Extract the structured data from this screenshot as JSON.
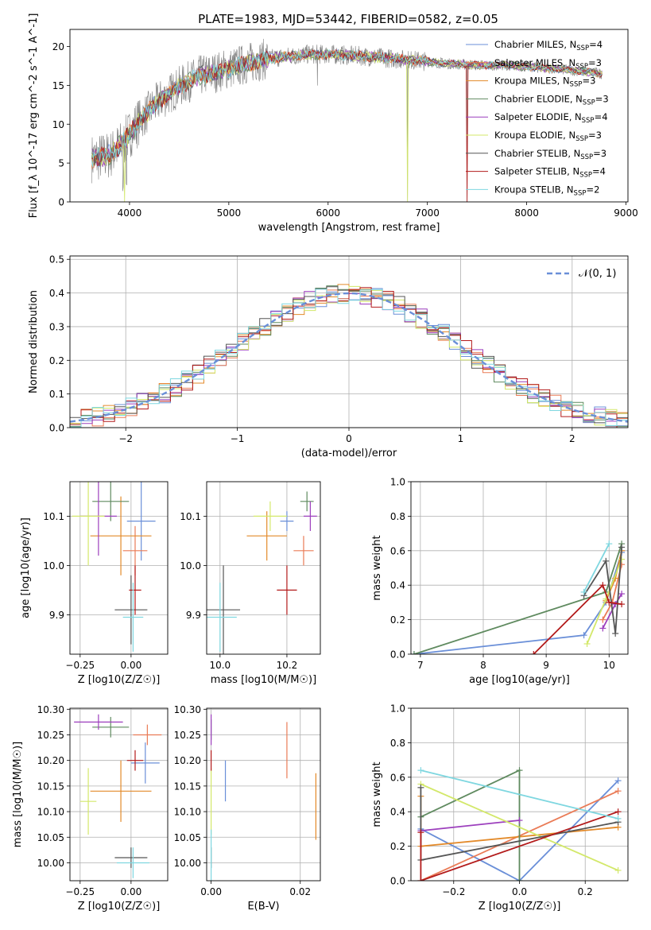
{
  "figure": {
    "title": "PLATE=1983, MJD=53442, FIBERID=0582, z=0.05"
  },
  "colors": {
    "Chabrier MILES": "#6a8fd8",
    "Salpeter MILES": "#ea7b56",
    "Kroupa MILES": "#e38a2a",
    "Chabrier ELODIE": "#5f8a5f",
    "Salpeter ELODIE": "#9c3fbd",
    "Kroupa ELODIE": "#d3e86a",
    "Chabrier STELIB": "#555555",
    "Salpeter STELIB": "#b31b1b",
    "Kroupa STELIB": "#7fd7e0",
    "data": "#808080",
    "normal": "#6a8fd8"
  },
  "chart_data": [
    {
      "id": "spectrum",
      "type": "line",
      "title": "PLATE=1983, MJD=53442, FIBERID=0582, z=0.05",
      "xlabel": "wavelength [Angstrom, rest frame]",
      "ylabel": "Flux [f_λ 10^-17 erg cm^-2 s^-1 A^-1]",
      "xlim": [
        3400,
        9020
      ],
      "ylim": [
        0,
        22.2
      ],
      "xticks": [
        "4000",
        "5000",
        "6000",
        "7000",
        "8000",
        "9000"
      ],
      "yticks": [
        "0",
        "5",
        "10",
        "15",
        "20"
      ],
      "legend": [
        "Chabrier MILES, N_SSP=4",
        "Salpeter MILES, N_SSP=3",
        "Kroupa MILES, N_SSP=3",
        "Chabrier ELODIE, N_SSP=3",
        "Salpeter ELODIE, N_SSP=4",
        "Kroupa ELODIE, N_SSP=3",
        "Chabrier STELIB, N_SSP=3",
        "Salpeter STELIB, N_SSP=4",
        "Kroupa STELIB, N_SSP=2"
      ],
      "continuum": [
        [
          3620,
          5.6
        ],
        [
          3800,
          6.0
        ],
        [
          3950,
          7.8
        ],
        [
          4100,
          10.5
        ],
        [
          4300,
          13.0
        ],
        [
          4500,
          14.8
        ],
        [
          4700,
          16.2
        ],
        [
          4900,
          16.8
        ],
        [
          5100,
          17.5
        ],
        [
          5300,
          18.2
        ],
        [
          5500,
          18.6
        ],
        [
          5800,
          19.0
        ],
        [
          6000,
          19.0
        ],
        [
          6300,
          18.8
        ],
        [
          6600,
          18.5
        ],
        [
          6900,
          18.2
        ],
        [
          7200,
          17.8
        ],
        [
          7500,
          17.6
        ],
        [
          7800,
          17.6
        ],
        [
          8200,
          17.2
        ],
        [
          8500,
          16.9
        ],
        [
          8760,
          16.5
        ]
      ],
      "dips": [
        [
          3934,
          1.5
        ],
        [
          3969,
          2.2
        ],
        [
          5892,
          14.8
        ],
        [
          6800,
          0
        ],
        [
          7400,
          0
        ]
      ]
    },
    {
      "id": "residuals",
      "type": "bar",
      "xlabel": "(data-model)/error",
      "ylabel": "Normed distribution",
      "xlim": [
        -2.5,
        2.5
      ],
      "ylim": [
        0,
        0.51
      ],
      "xticks": [
        "−2",
        "−1",
        "0",
        "1",
        "2"
      ],
      "yticks": [
        "0.0",
        "0.1",
        "0.2",
        "0.3",
        "0.4",
        "0.5"
      ],
      "bin_width": 0.1,
      "legend": "𝒩(0, 1)"
    },
    {
      "id": "age-vs-Z",
      "type": "scatter",
      "xlabel": "Z [log10(Z/Z☉)]",
      "ylabel": "age [log10(age/yr)]",
      "xlim": [
        -0.3,
        0.18
      ],
      "ylim": [
        9.82,
        10.17
      ],
      "xticks": [
        "−0.25",
        "0.00"
      ],
      "yticks": [
        "9.9",
        "10.0",
        "10.1"
      ],
      "points": [
        {
          "model": "Chabrier MILES",
          "x": 0.05,
          "y": 10.09,
          "ex": 0.07,
          "ey": 0.08
        },
        {
          "model": "Salpeter MILES",
          "x": 0.02,
          "y": 10.03,
          "ex": 0.06,
          "ey": 0.05
        },
        {
          "model": "Kroupa MILES",
          "x": -0.05,
          "y": 10.06,
          "ex": 0.15,
          "ey": 0.08
        },
        {
          "model": "Chabrier ELODIE",
          "x": -0.1,
          "y": 10.13,
          "ex": 0.09,
          "ey": 0.04
        },
        {
          "model": "Salpeter ELODIE",
          "x": -0.16,
          "y": 10.1,
          "ex": 0.09,
          "ey": 0.08
        },
        {
          "model": "Kroupa ELODIE",
          "x": -0.21,
          "y": 10.1,
          "ex": 0.08,
          "ey": 0.1
        },
        {
          "model": "Chabrier STELIB",
          "x": 0.0,
          "y": 9.91,
          "ex": 0.08,
          "ey": 0.07
        },
        {
          "model": "Salpeter STELIB",
          "x": 0.02,
          "y": 9.95,
          "ex": 0.03,
          "ey": 0.05
        },
        {
          "model": "Kroupa STELIB",
          "x": 0.01,
          "y": 9.895,
          "ex": 0.05,
          "ey": 0.07
        }
      ]
    },
    {
      "id": "age-vs-mass",
      "type": "scatter",
      "xlabel": "mass [log10(M/M☉)]",
      "xlim": [
        9.96,
        10.3
      ],
      "ylim": [
        9.82,
        10.17
      ],
      "xticks": [
        "10.0",
        "10.2"
      ],
      "yticks": [
        "9.9",
        "10.0",
        "10.1"
      ],
      "points": [
        {
          "model": "Chabrier MILES",
          "x": 10.2,
          "y": 10.09,
          "ex": 0.02,
          "ey": 0.02
        },
        {
          "model": "Salpeter MILES",
          "x": 10.25,
          "y": 10.03,
          "ex": 0.03,
          "ey": 0.03
        },
        {
          "model": "Kroupa MILES",
          "x": 10.14,
          "y": 10.06,
          "ex": 0.06,
          "ey": 0.05
        },
        {
          "model": "Chabrier ELODIE",
          "x": 10.26,
          "y": 10.13,
          "ex": 0.02,
          "ey": 0.02
        },
        {
          "model": "Salpeter ELODIE",
          "x": 10.27,
          "y": 10.1,
          "ex": 0.02,
          "ey": 0.03
        },
        {
          "model": "Kroupa ELODIE",
          "x": 10.15,
          "y": 10.1,
          "ex": 0.05,
          "ey": 0.03
        },
        {
          "model": "Chabrier STELIB",
          "x": 10.01,
          "y": 9.91,
          "ex": 0.05,
          "ey": 0.09
        },
        {
          "model": "Salpeter STELIB",
          "x": 10.2,
          "y": 9.95,
          "ex": 0.03,
          "ey": 0.05
        },
        {
          "model": "Kroupa STELIB",
          "x": 10.0,
          "y": 9.895,
          "ex": 0.05,
          "ey": 0.07
        }
      ]
    },
    {
      "id": "weight-vs-age",
      "type": "line",
      "xlabel": "age [log10(age/yr)]",
      "ylabel": "mass weight",
      "xlim": [
        6.85,
        10.3
      ],
      "ylim": [
        0,
        1
      ],
      "xticks": [
        "7",
        "8",
        "9",
        "10"
      ],
      "yticks": [
        "0.0",
        "0.2",
        "0.4",
        "0.6",
        "0.8",
        "1.0"
      ],
      "series": [
        {
          "model": "Chabrier MILES",
          "x": [
            6.9,
            9.6,
            9.95,
            10.2
          ],
          "y": [
            0.0,
            0.11,
            0.3,
            0.59
          ]
        },
        {
          "model": "Salpeter MILES",
          "x": [
            9.9,
            10.05,
            10.2
          ],
          "y": [
            0.2,
            0.3,
            0.52
          ]
        },
        {
          "model": "Kroupa MILES",
          "x": [
            9.95,
            10.1,
            10.2
          ],
          "y": [
            0.31,
            0.44,
            0.6
          ]
        },
        {
          "model": "Chabrier ELODIE",
          "x": [
            6.9,
            9.95,
            10.2
          ],
          "y": [
            0.0,
            0.36,
            0.64
          ]
        },
        {
          "model": "Salpeter ELODIE",
          "x": [
            9.9,
            10.1,
            10.2
          ],
          "y": [
            0.15,
            0.29,
            0.35
          ]
        },
        {
          "model": "Kroupa ELODIE",
          "x": [
            9.65,
            9.95,
            10.2
          ],
          "y": [
            0.06,
            0.32,
            0.55
          ]
        },
        {
          "model": "Chabrier STELIB",
          "x": [
            9.6,
            9.95,
            10.1,
            10.2
          ],
          "y": [
            0.34,
            0.54,
            0.12,
            0.62
          ]
        },
        {
          "model": "Salpeter STELIB",
          "x": [
            8.8,
            9.9,
            10.0,
            10.2
          ],
          "y": [
            0.0,
            0.4,
            0.3,
            0.29
          ]
        },
        {
          "model": "Kroupa STELIB",
          "x": [
            9.6,
            10.0
          ],
          "y": [
            0.36,
            0.64
          ]
        }
      ]
    },
    {
      "id": "mass-vs-Z",
      "type": "scatter",
      "xlabel": "Z [log10(Z/Z☉)]",
      "ylabel": "mass [log10(M/M☉)]",
      "xlim": [
        -0.3,
        0.18
      ],
      "ylim": [
        9.965,
        10.302
      ],
      "xticks": [
        "−0.25",
        "0.00"
      ],
      "yticks": [
        "10.00",
        "10.05",
        "10.10",
        "10.15",
        "10.20",
        "10.25",
        "10.30"
      ],
      "points": [
        {
          "model": "Chabrier MILES",
          "x": 0.07,
          "y": 10.195,
          "ex": 0.07,
          "ey": 0.04
        },
        {
          "model": "Salpeter MILES",
          "x": 0.08,
          "y": 10.25,
          "ex": 0.07,
          "ey": 0.02
        },
        {
          "model": "Kroupa MILES",
          "x": -0.05,
          "y": 10.14,
          "ex": 0.15,
          "ey": 0.06
        },
        {
          "model": "Chabrier ELODIE",
          "x": -0.1,
          "y": 10.265,
          "ex": 0.09,
          "ey": 0.02
        },
        {
          "model": "Salpeter ELODIE",
          "x": -0.16,
          "y": 10.275,
          "ex": 0.12,
          "ey": 0.015
        },
        {
          "model": "Kroupa ELODIE",
          "x": -0.21,
          "y": 10.12,
          "ex": 0.04,
          "ey": 0.065
        },
        {
          "model": "Chabrier STELIB",
          "x": 0.0,
          "y": 10.01,
          "ex": 0.08,
          "ey": 0.02
        },
        {
          "model": "Salpeter STELIB",
          "x": 0.02,
          "y": 10.2,
          "ex": 0.04,
          "ey": 0.02
        },
        {
          "model": "Kroupa STELIB",
          "x": 0.01,
          "y": 10.0,
          "ex": 0.08,
          "ey": 0.03
        }
      ]
    },
    {
      "id": "mass-vs-EBV",
      "type": "scatter",
      "xlabel": "E(B-V)",
      "xlim": [
        -0.001,
        0.0245
      ],
      "ylim": [
        9.965,
        10.302
      ],
      "xticks": [
        "0.00",
        "0.02"
      ],
      "yticks": [
        "10.00",
        "10.05",
        "10.10",
        "10.15",
        "10.20",
        "10.25",
        "10.30"
      ],
      "points": [
        {
          "model": "Chabrier MILES",
          "x": 0.0032,
          "y": 10.16,
          "ex": 0,
          "ey": 0.04
        },
        {
          "model": "Salpeter MILES",
          "x": 0.017,
          "y": 10.22,
          "ex": 0,
          "ey": 0.055
        },
        {
          "model": "Kroupa MILES",
          "x": 0.0235,
          "y": 10.11,
          "ex": 0,
          "ey": 0.065
        },
        {
          "model": "Chabrier ELODIE",
          "x": 0.0,
          "y": 10.26,
          "ex": 0,
          "ey": 0.02
        },
        {
          "model": "Salpeter ELODIE",
          "x": 0.0,
          "y": 10.26,
          "ex": 0,
          "ey": 0.03
        },
        {
          "model": "Kroupa ELODIE",
          "x": 0.0,
          "y": 10.12,
          "ex": 0,
          "ey": 0.065
        },
        {
          "model": "Chabrier STELIB",
          "x": 0.0,
          "y": 10.01,
          "ex": 0,
          "ey": 0.02
        },
        {
          "model": "Salpeter STELIB",
          "x": 0.0,
          "y": 10.2,
          "ex": 0,
          "ey": 0.02
        },
        {
          "model": "Kroupa STELIB",
          "x": 0.0,
          "y": 10.0,
          "ex": 0,
          "ey": 0.065
        }
      ]
    },
    {
      "id": "weight-vs-Z",
      "type": "line",
      "xlabel": "Z [log10(Z/Z☉)]",
      "ylabel": "mass weight",
      "xlim": [
        -0.33,
        0.33
      ],
      "ylim": [
        0,
        1
      ],
      "xticks": [
        "−0.2",
        "0.0",
        "0.2"
      ],
      "yticks": [
        "0.0",
        "0.2",
        "0.4",
        "0.6",
        "0.8",
        "1.0"
      ],
      "series": [
        {
          "model": "Chabrier MILES",
          "x": [
            -0.3,
            0.0,
            0.3
          ],
          "y": [
            0.3,
            0.0,
            0.58
          ]
        },
        {
          "model": "Salpeter MILES",
          "x": [
            -0.3,
            0.3
          ],
          "y": [
            0.0,
            0.52
          ]
        },
        {
          "model": "Kroupa MILES",
          "x": [
            -0.3,
            -0.3,
            0.3
          ],
          "y": [
            0.49,
            0.2,
            0.31
          ]
        },
        {
          "model": "Chabrier ELODIE",
          "x": [
            -0.3,
            0.0,
            0.0
          ],
          "y": [
            0.37,
            0.64,
            0.0
          ]
        },
        {
          "model": "Salpeter ELODIE",
          "x": [
            -0.3,
            0.0
          ],
          "y": [
            0.29,
            0.35
          ]
        },
        {
          "model": "Kroupa ELODIE",
          "x": [
            -0.3,
            0.3
          ],
          "y": [
            0.56,
            0.06
          ]
        },
        {
          "model": "Chabrier STELIB",
          "x": [
            -0.3,
            -0.3,
            0.3
          ],
          "y": [
            0.54,
            0.12,
            0.34
          ]
        },
        {
          "model": "Salpeter STELIB",
          "x": [
            -0.3,
            -0.3,
            0.3
          ],
          "y": [
            0.28,
            0.0,
            0.4
          ]
        },
        {
          "model": "Kroupa STELIB",
          "x": [
            -0.3,
            0.3
          ],
          "y": [
            0.64,
            0.36
          ]
        }
      ]
    }
  ]
}
